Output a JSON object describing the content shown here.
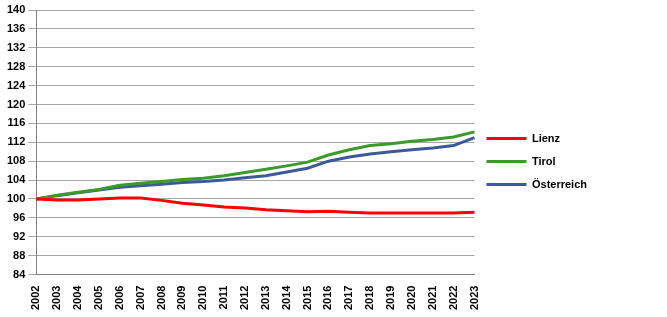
{
  "chart_data": {
    "type": "line",
    "categories": [
      "2002",
      "2003",
      "2004",
      "2005",
      "2006",
      "2007",
      "2008",
      "2009",
      "2010",
      "2011",
      "2012",
      "2013",
      "2014",
      "2015",
      "2016",
      "2017",
      "2018",
      "2019",
      "2020",
      "2021",
      "2022",
      "2023"
    ],
    "series": [
      {
        "name": "Lienz",
        "color": "#ff0000",
        "values": [
          100,
          99.8,
          99.8,
          100.0,
          100.2,
          100.2,
          99.7,
          99.1,
          98.7,
          98.3,
          98.1,
          97.7,
          97.5,
          97.3,
          97.4,
          97.2,
          97.0,
          97.0,
          97.0,
          97.0,
          97.0,
          97.2
        ]
      },
      {
        "name": "Tirol",
        "color": "#3a9a2a",
        "values": [
          100,
          100.8,
          101.4,
          102.0,
          102.9,
          103.3,
          103.7,
          104.1,
          104.4,
          104.9,
          105.6,
          106.3,
          107.0,
          107.8,
          109.3,
          110.4,
          111.3,
          111.7,
          112.2,
          112.6,
          113.1,
          114.2
        ]
      },
      {
        "name": "Österreich",
        "color": "#3c5a9a",
        "values": [
          100,
          100.7,
          101.3,
          101.9,
          102.5,
          102.8,
          103.1,
          103.5,
          103.7,
          104.0,
          104.5,
          104.9,
          105.7,
          106.5,
          108.0,
          108.9,
          109.5,
          110.0,
          110.4,
          110.8,
          111.3,
          113.0
        ]
      }
    ],
    "ylim": [
      84,
      140
    ],
    "yticks": [
      84,
      88,
      92,
      96,
      100,
      104,
      108,
      112,
      116,
      120,
      124,
      128,
      132,
      136,
      140
    ],
    "grid": true,
    "legend": "right"
  }
}
